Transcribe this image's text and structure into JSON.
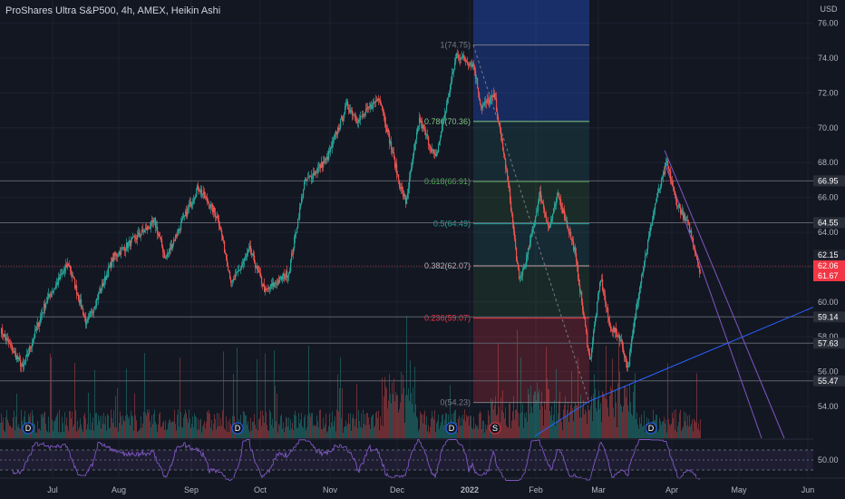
{
  "header": {
    "title": "ProShares Ultra S&P500, 4h, AMEX, Heikin Ashi",
    "currency": "USD"
  },
  "chart_data": [
    {
      "type": "candlestick",
      "title": "ProShares Ultra S&P500, 4h, AMEX, Heikin Ashi",
      "y_ticks": [
        54.0,
        56.0,
        58.0,
        60.0,
        62.0,
        64.0,
        66.0,
        68.0,
        70.0,
        72.0,
        74.0,
        76.0
      ],
      "y_tick_labels": [
        "54.00",
        "56.00",
        "58.00",
        "60.00",
        "62.00",
        "64.00",
        "66.00",
        "68.00",
        "70.00",
        "72.00",
        "74.00",
        "76.00"
      ],
      "ylim": [
        52.2,
        77.0
      ],
      "x_tick_labels": [
        "Jul",
        "Aug",
        "Sep",
        "Oct",
        "Nov",
        "Dec",
        "2022",
        "Feb",
        "Mar",
        "Apr",
        "May",
        "Jun"
      ],
      "anchors": [
        {
          "t": 0,
          "v": 58.4
        },
        {
          "t": 25,
          "v": 56.2
        },
        {
          "t": 50,
          "v": 60.0
        },
        {
          "t": 75,
          "v": 62.2
        },
        {
          "t": 95,
          "v": 58.7
        },
        {
          "t": 125,
          "v": 62.6
        },
        {
          "t": 170,
          "v": 64.6
        },
        {
          "t": 182,
          "v": 62.5
        },
        {
          "t": 218,
          "v": 66.6
        },
        {
          "t": 240,
          "v": 64.8
        },
        {
          "t": 255,
          "v": 61.0
        },
        {
          "t": 275,
          "v": 63.0
        },
        {
          "t": 292,
          "v": 60.6
        },
        {
          "t": 318,
          "v": 61.7
        },
        {
          "t": 335,
          "v": 66.8
        },
        {
          "t": 360,
          "v": 68.2
        },
        {
          "t": 382,
          "v": 71.3
        },
        {
          "t": 395,
          "v": 70.4
        },
        {
          "t": 418,
          "v": 71.8
        },
        {
          "t": 440,
          "v": 66.8
        },
        {
          "t": 447,
          "v": 65.7
        },
        {
          "t": 462,
          "v": 70.5
        },
        {
          "t": 480,
          "v": 68.2
        },
        {
          "t": 503,
          "v": 74.2
        },
        {
          "t": 522,
          "v": 73.6
        },
        {
          "t": 530,
          "v": 71.2
        },
        {
          "t": 545,
          "v": 71.8
        },
        {
          "t": 560,
          "v": 66.8
        },
        {
          "t": 572,
          "v": 61.2
        },
        {
          "t": 580,
          "v": 62.4
        },
        {
          "t": 595,
          "v": 66.2
        },
        {
          "t": 605,
          "v": 64.2
        },
        {
          "t": 615,
          "v": 66.2
        },
        {
          "t": 633,
          "v": 63.0
        },
        {
          "t": 650,
          "v": 56.6
        },
        {
          "t": 662,
          "v": 61.4
        },
        {
          "t": 672,
          "v": 58.6
        },
        {
          "t": 683,
          "v": 58.0
        },
        {
          "t": 692,
          "v": 56.2
        },
        {
          "t": 705,
          "v": 61.0
        },
        {
          "t": 722,
          "v": 65.6
        },
        {
          "t": 735,
          "v": 68.0
        },
        {
          "t": 745,
          "v": 65.8
        },
        {
          "t": 760,
          "v": 64.2
        },
        {
          "t": 772,
          "v": 61.7
        }
      ],
      "fib_levels": [
        {
          "label": "1(74.75)",
          "value": 74.75,
          "color": "#787b86"
        },
        {
          "label": "0.786(70.36)",
          "value": 70.36,
          "color": "#81c784"
        },
        {
          "label": "0.618(66.91)",
          "value": 66.91,
          "color": "#4caf50"
        },
        {
          "label": "0.5(64.49)",
          "value": 64.49,
          "color": "#26a69a"
        },
        {
          "label": "0.382(62.07)",
          "value": 62.07,
          "color": "#b2b5be"
        },
        {
          "label": "0.236(59.07)",
          "value": 59.07,
          "color": "#f23645"
        },
        {
          "label": "0(54.23)",
          "value": 54.23,
          "color": "#787b86"
        }
      ],
      "price_lines": [
        {
          "label": "66.95",
          "value": 66.95
        },
        {
          "label": "64.55",
          "value": 64.55
        },
        {
          "label": "59.14",
          "value": 59.14
        },
        {
          "label": "57.63",
          "value": 57.63
        },
        {
          "label": "55.47",
          "value": 55.47
        }
      ],
      "price_badges": [
        {
          "label": "62.15",
          "value": 62.15,
          "color": "#1e222d"
        },
        {
          "label": "62.06",
          "value": 62.06,
          "color": "#f23645"
        },
        {
          "label": "61.67",
          "value": 61.67,
          "color": "#f23645"
        }
      ],
      "rsi": {
        "tick_label": "50.00",
        "color": "#7e57c2"
      },
      "event_markers": [
        {
          "label": "D",
          "kind": "dividend",
          "color": "#2962ff"
        },
        {
          "label": "D",
          "kind": "dividend",
          "color": "#2962ff"
        },
        {
          "label": "D",
          "kind": "dividend",
          "color": "#2962ff"
        },
        {
          "label": "S",
          "kind": "split",
          "color": "#f23645"
        },
        {
          "label": "D",
          "kind": "dividend",
          "color": "#2962ff"
        }
      ],
      "colors": {
        "up": "#26a69a",
        "down": "#ef5350",
        "background": "#131722",
        "grid": "#1e2230",
        "channel": "#7e57c2",
        "trendline": "#2962ff"
      }
    }
  ]
}
